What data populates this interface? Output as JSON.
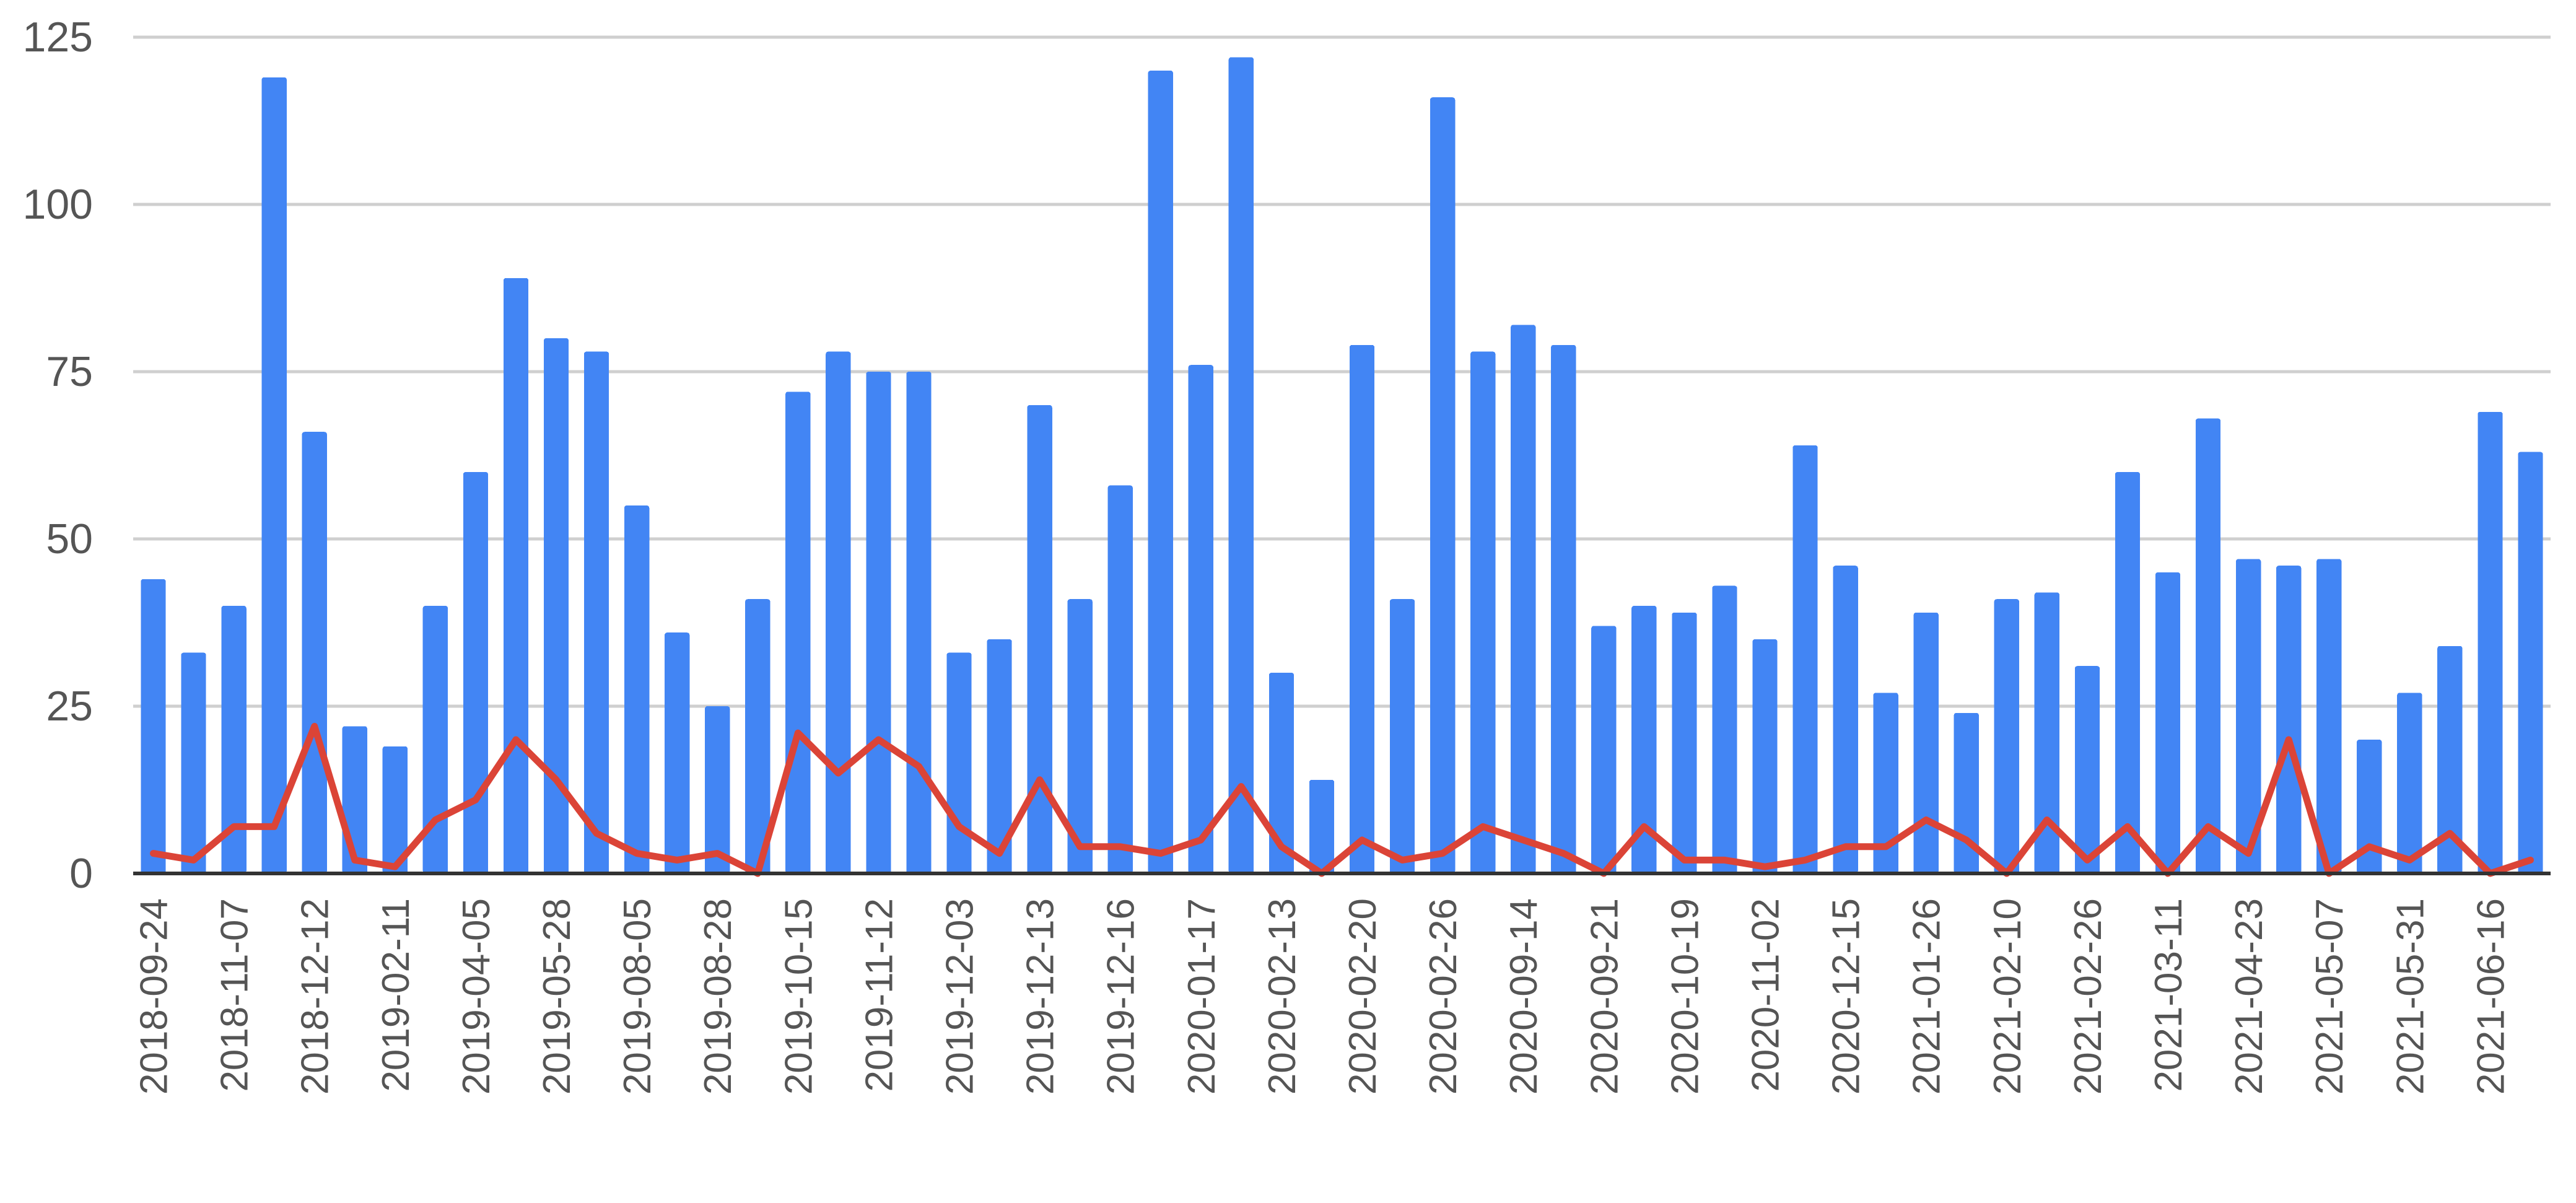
{
  "chart_data": {
    "type": "bar",
    "title": "",
    "xlabel": "",
    "ylabel": "",
    "ylim": [
      0,
      125
    ],
    "yticks": [
      0,
      25,
      50,
      75,
      100,
      125
    ],
    "grid": true,
    "legend": "none",
    "x_tick_labels": [
      "2018-09-24",
      "2018-11-07",
      "2018-12-12",
      "2019-02-11",
      "2019-04-05",
      "2019-05-28",
      "2019-08-05",
      "2019-08-28",
      "2019-10-15",
      "2019-11-12",
      "2019-12-03",
      "2019-12-13",
      "2019-12-16",
      "2020-01-17",
      "2020-02-13",
      "2020-02-20",
      "2020-02-26",
      "2020-09-14",
      "2020-09-21",
      "2020-10-19",
      "2020-11-02",
      "2020-12-15",
      "2021-01-26",
      "2021-02-10",
      "2021-02-26",
      "2021-03-11",
      "2021-04-23",
      "2021-05-07",
      "2021-05-31",
      "2021-06-16"
    ],
    "series": [
      {
        "type": "bar",
        "color": "#4285f4",
        "values": [
          44,
          33,
          40,
          119,
          66,
          22,
          19,
          40,
          60,
          89,
          80,
          78,
          55,
          36,
          25,
          41,
          72,
          78,
          75,
          75,
          33,
          35,
          70,
          41,
          58,
          120,
          76,
          122,
          30,
          14,
          79,
          41,
          116,
          78,
          82,
          79,
          37,
          40,
          39,
          43,
          35,
          64,
          46,
          27,
          39,
          24,
          41,
          42,
          31,
          60,
          45,
          68,
          47,
          46,
          47,
          20,
          27,
          34,
          69,
          63
        ]
      },
      {
        "type": "line",
        "color": "#db4437",
        "values": [
          3,
          2,
          7,
          7,
          22,
          2,
          1,
          8,
          11,
          20,
          14,
          6,
          3,
          2,
          3,
          0,
          21,
          15,
          20,
          16,
          7,
          3,
          14,
          4,
          4,
          3,
          5,
          13,
          4,
          0,
          5,
          2,
          3,
          7,
          5,
          3,
          0,
          7,
          2,
          2,
          1,
          2,
          4,
          4,
          8,
          5,
          0,
          8,
          2,
          7,
          0,
          7,
          3,
          20,
          0,
          4,
          2,
          6,
          0,
          2
        ]
      }
    ]
  }
}
